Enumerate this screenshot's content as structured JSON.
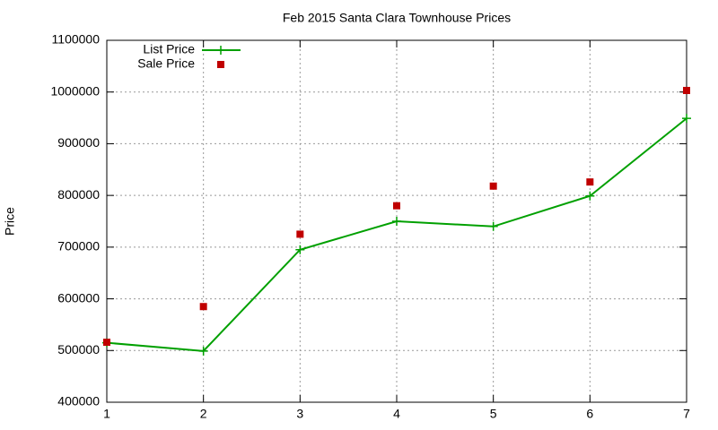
{
  "chart_data": {
    "type": "line",
    "title": "Feb 2015 Santa Clara Townhouse Prices",
    "y_label": "Price",
    "x": [
      1,
      2,
      3,
      4,
      5,
      6,
      7
    ],
    "series": [
      {
        "name": "List Price",
        "color": "#00a000",
        "mode": "lines+points",
        "values": [
          515000,
          499000,
          695000,
          750000,
          740000,
          799000,
          949000
        ]
      },
      {
        "name": "Sale Price",
        "color": "#c00000",
        "mode": "points",
        "values": [
          516000,
          585000,
          725000,
          780000,
          818000,
          826000,
          1003000
        ]
      }
    ],
    "xlim": [
      1,
      7
    ],
    "xticks": [
      1,
      2,
      3,
      4,
      5,
      6,
      7
    ],
    "ylim": [
      400000,
      1100000
    ],
    "yticks": [
      400000,
      500000,
      600000,
      700000,
      800000,
      900000,
      1000000,
      1100000
    ],
    "grid": true,
    "legend": "top-left"
  }
}
